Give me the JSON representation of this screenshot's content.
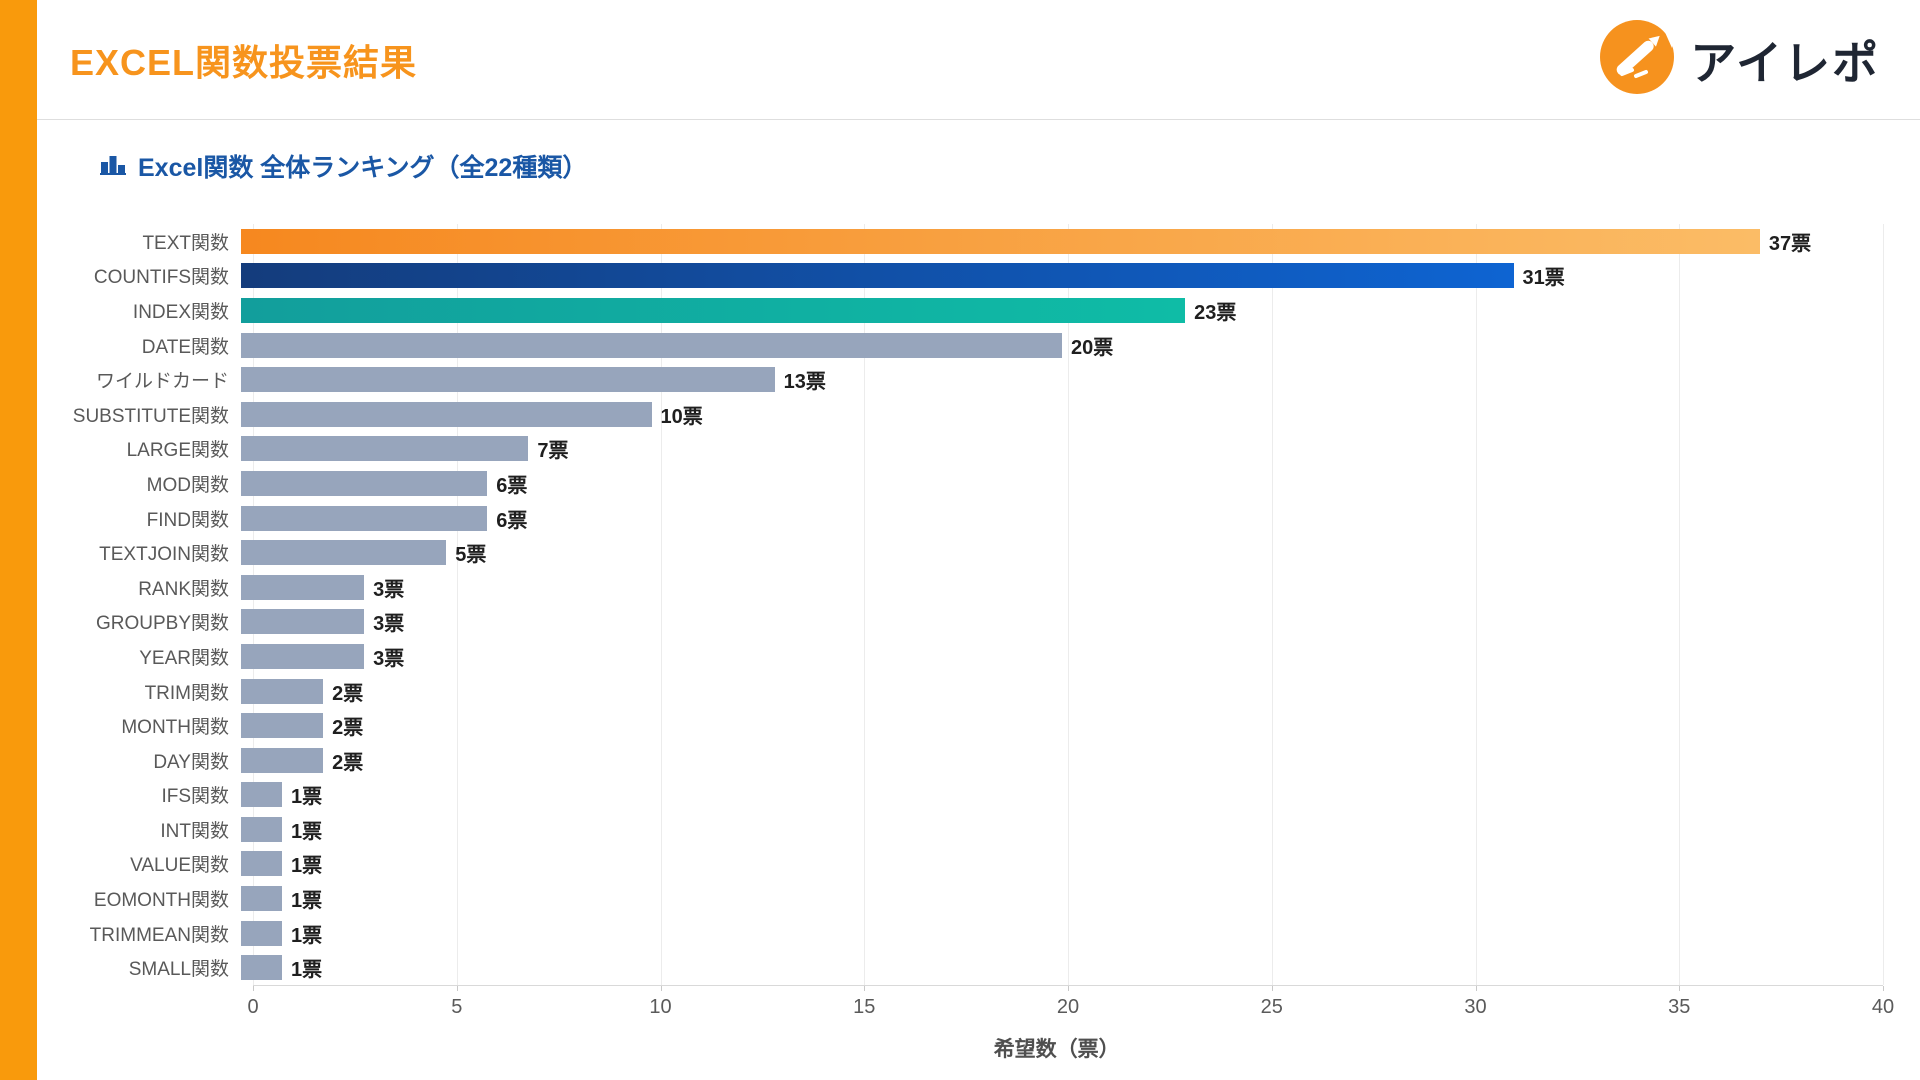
{
  "page": {
    "accent_orange": "#F99A0C"
  },
  "header": {
    "title": "EXCEL関数投票結果",
    "title_color": "#F7941D",
    "logo_text": "アイレポ",
    "logo_icon_color": "#F6921E"
  },
  "section": {
    "icon": "podium-ranking-icon",
    "title": "Excel関数 全体ランキング（全22種類）",
    "title_color": "#1A57A5"
  },
  "chart_data": {
    "type": "bar",
    "orientation": "horizontal",
    "title": "Excel関数 全体ランキング（全22種類）",
    "xlabel": "希望数（票）",
    "xlim": [
      0,
      40
    ],
    "xticks": [
      0,
      5,
      10,
      15,
      20,
      25,
      30,
      35,
      40
    ],
    "grid": "vertical",
    "unit": "票",
    "bar_color_default": "#97A5BC",
    "palette": {
      "orange": [
        "#F6881F",
        "#FBBC66"
      ],
      "blue": [
        "#143C7C",
        "#0E64D2"
      ],
      "teal": [
        "#129E9C",
        "#0FBCA6"
      ],
      "gray": [
        "#97A5BC",
        "#97A5BC"
      ]
    },
    "items": [
      {
        "label": "TEXT関数",
        "value": 37,
        "value_label": "37票",
        "color": "orange"
      },
      {
        "label": "COUNTIFS関数",
        "value": 31,
        "value_label": "31票",
        "color": "blue"
      },
      {
        "label": "INDEX関数",
        "value": 23,
        "value_label": "23票",
        "color": "teal"
      },
      {
        "label": "DATE関数",
        "value": 20,
        "value_label": "20票",
        "color": "gray"
      },
      {
        "label": "ワイルドカード",
        "value": 13,
        "value_label": "13票",
        "color": "gray"
      },
      {
        "label": "SUBSTITUTE関数",
        "value": 10,
        "value_label": "10票",
        "color": "gray"
      },
      {
        "label": "LARGE関数",
        "value": 7,
        "value_label": "7票",
        "color": "gray"
      },
      {
        "label": "MOD関数",
        "value": 6,
        "value_label": "6票",
        "color": "gray"
      },
      {
        "label": "FIND関数",
        "value": 6,
        "value_label": "6票",
        "color": "gray"
      },
      {
        "label": "TEXTJOIN関数",
        "value": 5,
        "value_label": "5票",
        "color": "gray"
      },
      {
        "label": "RANK関数",
        "value": 3,
        "value_label": "3票",
        "color": "gray"
      },
      {
        "label": "GROUPBY関数",
        "value": 3,
        "value_label": "3票",
        "color": "gray"
      },
      {
        "label": "YEAR関数",
        "value": 3,
        "value_label": "3票",
        "color": "gray"
      },
      {
        "label": "TRIM関数",
        "value": 2,
        "value_label": "2票",
        "color": "gray"
      },
      {
        "label": "MONTH関数",
        "value": 2,
        "value_label": "2票",
        "color": "gray"
      },
      {
        "label": "DAY関数",
        "value": 2,
        "value_label": "2票",
        "color": "gray"
      },
      {
        "label": "IFS関数",
        "value": 1,
        "value_label": "1票",
        "color": "gray"
      },
      {
        "label": "INT関数",
        "value": 1,
        "value_label": "1票",
        "color": "gray"
      },
      {
        "label": "VALUE関数",
        "value": 1,
        "value_label": "1票",
        "color": "gray"
      },
      {
        "label": "EOMONTH関数",
        "value": 1,
        "value_label": "1票",
        "color": "gray"
      },
      {
        "label": "TRIMMEAN関数",
        "value": 1,
        "value_label": "1票",
        "color": "gray"
      },
      {
        "label": "SMALL関数",
        "value": 1,
        "value_label": "1票",
        "color": "gray"
      }
    ]
  }
}
